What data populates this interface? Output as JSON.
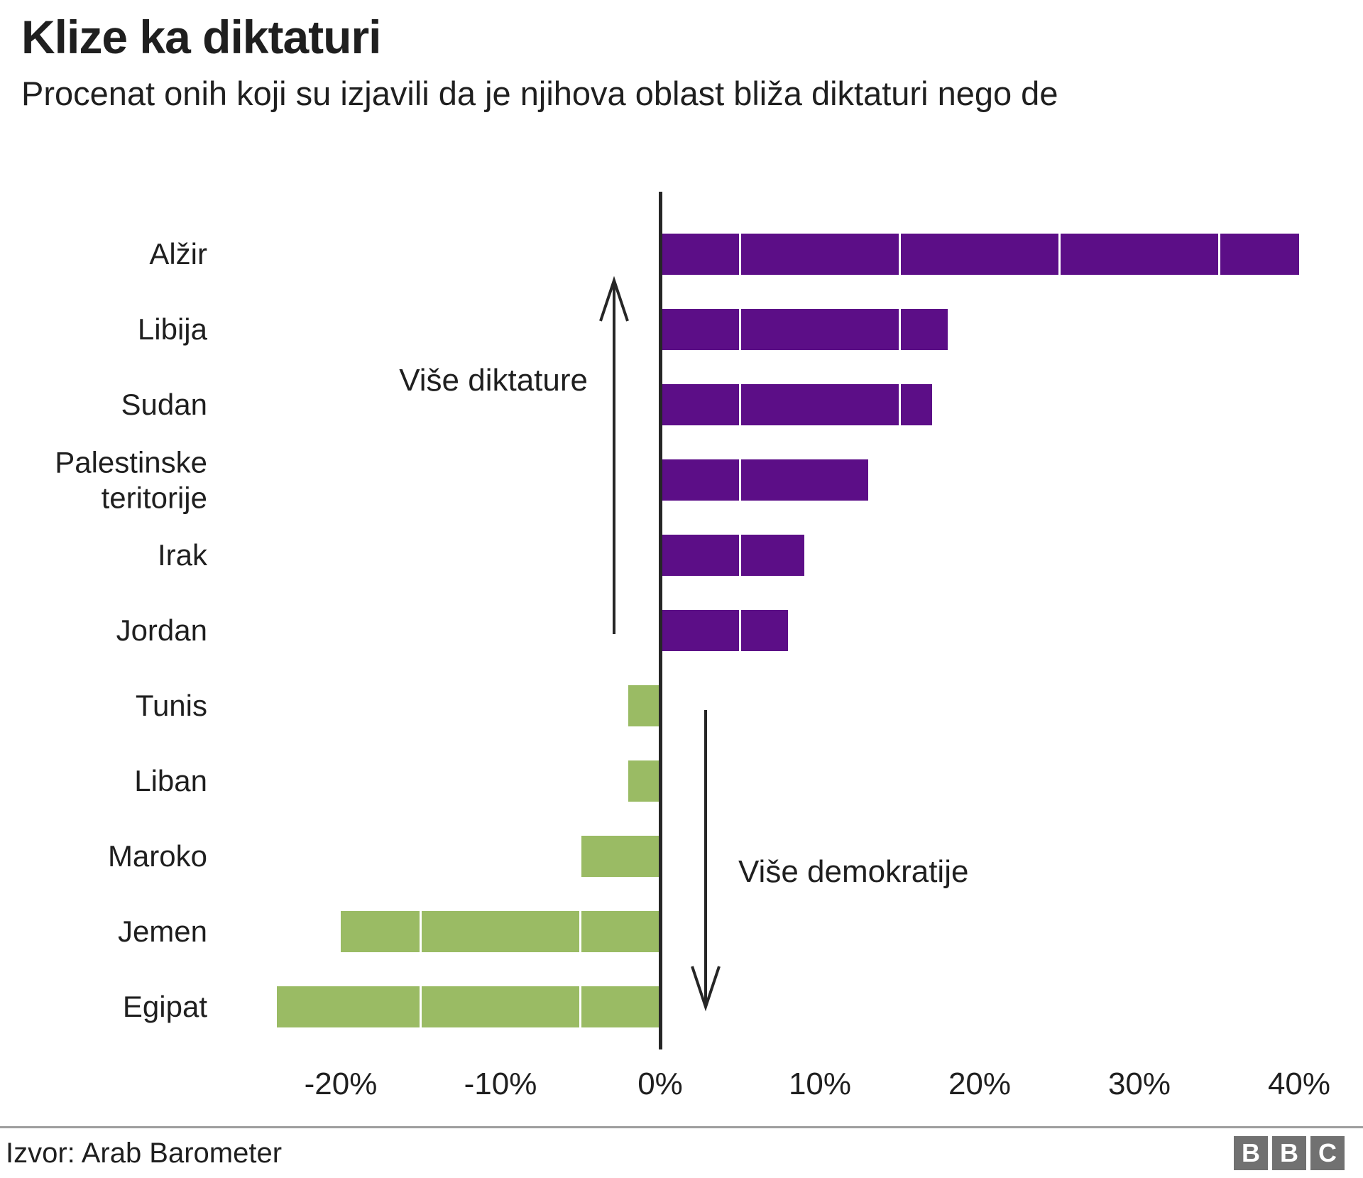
{
  "header": {
    "title": "Klize ka diktaturi",
    "subtitle": "Procenat onih koji su izjavili da je njihova oblast bliža diktaturi nego de"
  },
  "chart_data": {
    "type": "bar",
    "orientation": "horizontal",
    "title": "Klize ka diktaturi",
    "subtitle_visible": "Procenat onih koji su izjavili da je njihova oblast bliža diktaturi nego de",
    "categories": [
      "Alžir",
      "Libija",
      "Sudan",
      "Palestinske teritorije",
      "Irak",
      "Jordan",
      "Tunis",
      "Liban",
      "Maroko",
      "Jemen",
      "Egipat"
    ],
    "values": [
      40,
      18,
      17,
      13,
      9,
      8,
      -2,
      -2,
      -5,
      -20,
      -24
    ],
    "unit": "%",
    "xlim": [
      -28,
      44
    ],
    "x_ticks": [
      {
        "value": -20,
        "label": "-20%"
      },
      {
        "value": -10,
        "label": "-10%"
      },
      {
        "value": 0,
        "label": "0%"
      },
      {
        "value": 10,
        "label": "10%"
      },
      {
        "value": 20,
        "label": "20%"
      },
      {
        "value": 30,
        "label": "30%"
      },
      {
        "value": 40,
        "label": "40%"
      }
    ],
    "white_gridlines_percent": [
      -15,
      -5,
      5,
      15,
      25,
      35
    ],
    "grid": "white lines over bars only",
    "legend_position": "none",
    "annotations": [
      {
        "text": "Više diktature",
        "direction": "up"
      },
      {
        "text": "Više demokratije",
        "direction": "down"
      }
    ],
    "colors": {
      "positive_bar": "#5c0e87",
      "negative_bar": "#9abb64",
      "axis": "#262626",
      "text": "#1f1f1f"
    }
  },
  "footer": {
    "source": "Izvor: Arab Barometer",
    "logo_letters": [
      "B",
      "B",
      "C"
    ]
  }
}
